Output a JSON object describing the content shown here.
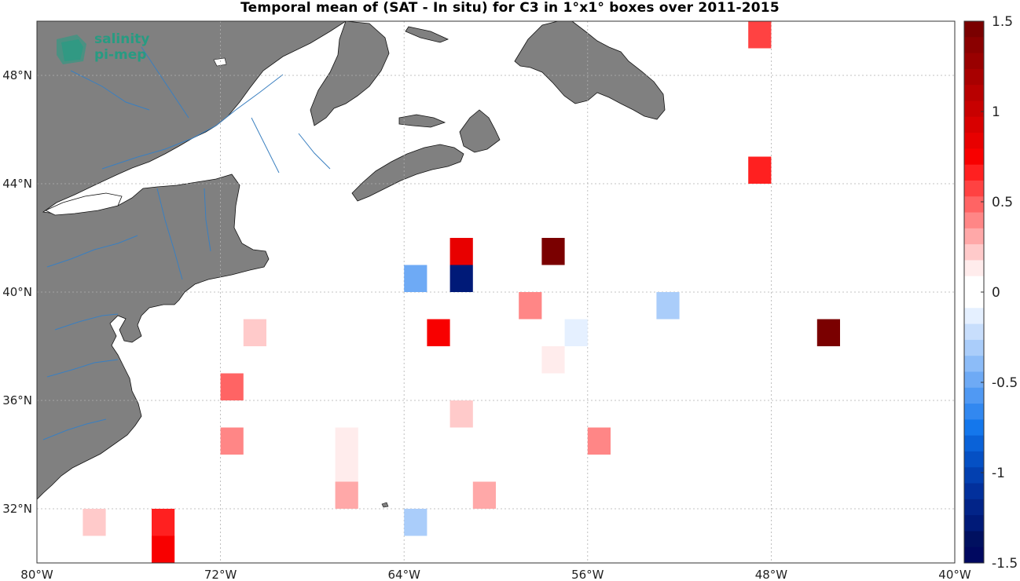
{
  "title": "Temporal mean of (SAT - In situ) for C3 in 1°x1° boxes over 2011-2015",
  "logo": {
    "line1": "salinity",
    "line2": "pi-mep"
  },
  "map": {
    "lon_range": [
      -80,
      -40
    ],
    "lat_range": [
      30,
      50
    ],
    "x_ticks": [
      {
        "value": -80,
        "label": "80°W"
      },
      {
        "value": -72,
        "label": "72°W"
      },
      {
        "value": -64,
        "label": "64°W"
      },
      {
        "value": -56,
        "label": "56°W"
      },
      {
        "value": -48,
        "label": "48°W"
      },
      {
        "value": -40,
        "label": "40°W"
      }
    ],
    "y_ticks": [
      {
        "value": 32,
        "label": "32°N"
      },
      {
        "value": 36,
        "label": "36°N"
      },
      {
        "value": 40,
        "label": "40°N"
      },
      {
        "value": 44,
        "label": "44°N"
      },
      {
        "value": 48,
        "label": "48°N"
      }
    ],
    "grid": true,
    "land_color": "#808080",
    "river_color": "#3a7fc0",
    "ocean_color": "#ffffff"
  },
  "colorbar": {
    "range": [
      -1.5,
      1.5
    ],
    "ticks": [
      {
        "value": 1.5,
        "label": "1.5"
      },
      {
        "value": 1,
        "label": "1"
      },
      {
        "value": 0.5,
        "label": "0.5"
      },
      {
        "value": 0,
        "label": "0"
      },
      {
        "value": -0.5,
        "label": "-0.5"
      },
      {
        "value": -1,
        "label": "-1"
      },
      {
        "value": -1.5,
        "label": "-1.5"
      }
    ],
    "colors_top_to_bottom": [
      "#7a0000",
      "#8a0000",
      "#990000",
      "#a80000",
      "#b80000",
      "#c80000",
      "#d80000",
      "#e80000",
      "#f80000",
      "#ff2020",
      "#ff4242",
      "#ff6464",
      "#ff8686",
      "#ffa8a8",
      "#ffcaca",
      "#ffecec",
      "#ffffff",
      "#ffffff",
      "#e5f0ff",
      "#c8defc",
      "#aacdfa",
      "#8cbcf8",
      "#6eaaf5",
      "#5099f3",
      "#3288f0",
      "#1477ec",
      "#0a62d8",
      "#0550c4",
      "#0340b0",
      "#02309c",
      "#022488",
      "#001a78",
      "#001060",
      "#000860"
    ]
  },
  "chart_data": {
    "type": "heatmap",
    "title": "Temporal mean of (SAT - In situ) for C3 in 1°x1° boxes over 2011-2015",
    "units_note": "1°x1° boxes, lon/lat of box lower-left corner",
    "xlabel": "",
    "ylabel": "",
    "xlim": [
      -80,
      -40
    ],
    "ylim": [
      30,
      50
    ],
    "cells": [
      {
        "lon": -49,
        "lat": 49,
        "value": 0.55
      },
      {
        "lon": -49,
        "lat": 44,
        "value": 0.65
      },
      {
        "lon": -62,
        "lat": 41,
        "value": 0.85
      },
      {
        "lon": -58,
        "lat": 41,
        "value": 1.45
      },
      {
        "lon": -64,
        "lat": 40,
        "value": -0.45
      },
      {
        "lon": -62,
        "lat": 40,
        "value": -1.25
      },
      {
        "lon": -59,
        "lat": 39,
        "value": 0.4
      },
      {
        "lon": -53,
        "lat": 39,
        "value": -0.3
      },
      {
        "lon": -71,
        "lat": 38,
        "value": 0.25
      },
      {
        "lon": -63,
        "lat": 38,
        "value": 0.75
      },
      {
        "lon": -57,
        "lat": 38,
        "value": -0.15
      },
      {
        "lon": -46,
        "lat": 38,
        "value": 1.45
      },
      {
        "lon": -58,
        "lat": 37,
        "value": 0.12
      },
      {
        "lon": -72,
        "lat": 36,
        "value": 0.5
      },
      {
        "lon": -62,
        "lat": 35,
        "value": 0.25
      },
      {
        "lon": -72,
        "lat": 34,
        "value": 0.4
      },
      {
        "lon": -67,
        "lat": 34,
        "value": 0.1
      },
      {
        "lon": -56,
        "lat": 34,
        "value": 0.4
      },
      {
        "lon": -67,
        "lat": 33,
        "value": 0.1
      },
      {
        "lon": -67,
        "lat": 32,
        "value": 0.3
      },
      {
        "lon": -61,
        "lat": 32,
        "value": 0.3
      },
      {
        "lon": -78,
        "lat": 31,
        "value": 0.25
      },
      {
        "lon": -75,
        "lat": 31,
        "value": 0.65
      },
      {
        "lon": -64,
        "lat": 31,
        "value": -0.35
      },
      {
        "lon": -75,
        "lat": 30,
        "value": 0.75
      }
    ]
  }
}
